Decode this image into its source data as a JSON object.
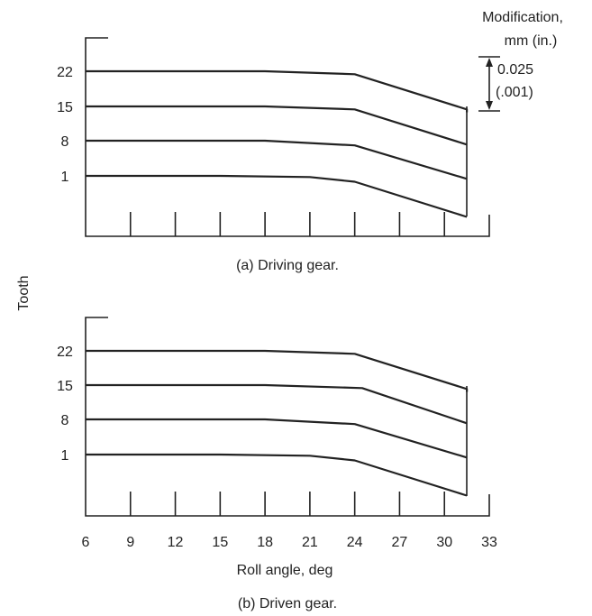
{
  "chart_data": [
    {
      "type": "line",
      "caption": "(a) Driving gear.",
      "xlim": [
        6,
        33
      ],
      "tooth_ticks": [
        "22",
        "15",
        "8",
        "1"
      ],
      "series": [
        {
          "name": "22",
          "x": [
            6,
            18,
            24,
            31.5,
            31.5
          ],
          "y": [
            22,
            22,
            21.5,
            15.5,
            15
          ]
        },
        {
          "name": "15",
          "x": [
            6,
            18,
            24,
            31.5
          ],
          "y": [
            15,
            15,
            14.5,
            8.5
          ]
        },
        {
          "name": "8",
          "x": [
            6,
            18,
            24,
            31.5
          ],
          "y": [
            8,
            8,
            7.2,
            1.5
          ]
        },
        {
          "name": "1",
          "x": [
            6,
            15,
            21,
            24,
            31.5
          ],
          "y": [
            1,
            1,
            0.8,
            0,
            -6
          ]
        }
      ],
      "modification_scale": {
        "title_line1": "Modification,",
        "title_line2": "mm (in.)",
        "value_line1": "0.025",
        "value_line2": "(.001)"
      }
    },
    {
      "type": "line",
      "caption": "(b) Driven gear.",
      "xlim": [
        6,
        33
      ],
      "xticks": [
        "6",
        "9",
        "12",
        "15",
        "18",
        "21",
        "24",
        "27",
        "30",
        "33"
      ],
      "xlabel": "Roll angle, deg",
      "tooth_ticks": [
        "22",
        "15",
        "8",
        "1"
      ],
      "series": [
        {
          "name": "22",
          "x": [
            6,
            18,
            24,
            31.5,
            31.5
          ],
          "y": [
            22,
            22,
            21.5,
            15.5,
            15
          ]
        },
        {
          "name": "15",
          "x": [
            6,
            18,
            24.5,
            31.5
          ],
          "y": [
            15,
            15,
            14.5,
            8.5
          ]
        },
        {
          "name": "8",
          "x": [
            6,
            18,
            24,
            31.5
          ],
          "y": [
            8,
            8,
            7.2,
            1.5
          ]
        },
        {
          "name": "1",
          "x": [
            6,
            15,
            21,
            24,
            31.5
          ],
          "y": [
            1,
            1,
            0.8,
            0,
            -6
          ]
        }
      ]
    }
  ],
  "shared_ylabel": "Tooth"
}
